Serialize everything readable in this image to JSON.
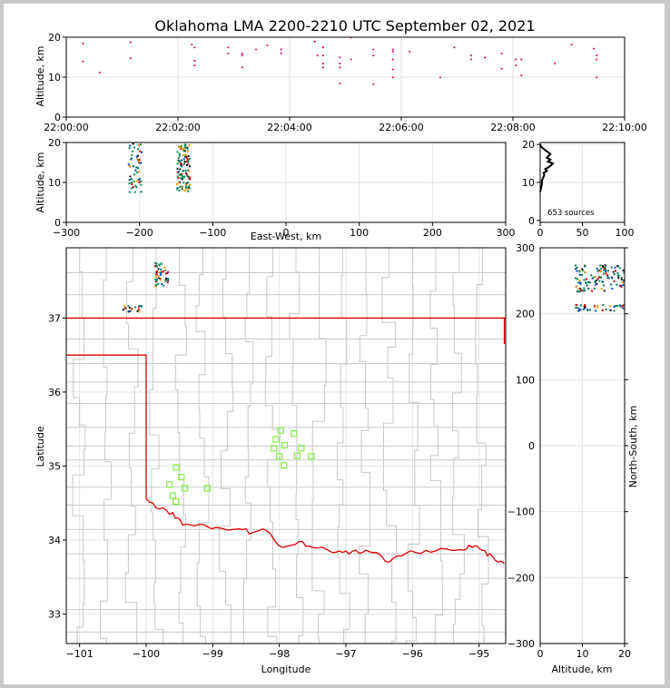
{
  "chart_data": [
    {
      "type": "scatter",
      "panel": "time-altitude",
      "title": "Oklahoma LMA 2200-2210 UTC September 02, 2021",
      "xlabel": "",
      "ylabel": "Altitude, km",
      "x_ticks": [
        "22:00:00",
        "22:02:00",
        "22:04:00",
        "22:06:00",
        "22:08:00",
        "22:10:00"
      ],
      "xlim_minutes": [
        0,
        10
      ],
      "y_ticks": [
        0,
        10,
        20
      ],
      "ylim": [
        0,
        20
      ],
      "grid": true,
      "marker_color": "#cc0066",
      "points_minutes_km": [
        [
          0.3,
          18.5
        ],
        [
          0.3,
          14
        ],
        [
          0.6,
          11.2
        ],
        [
          1.15,
          18.8
        ],
        [
          1.15,
          14.8
        ],
        [
          2.25,
          18.2
        ],
        [
          2.3,
          17.5
        ],
        [
          2.3,
          14.2
        ],
        [
          2.3,
          13
        ],
        [
          2.9,
          17.5
        ],
        [
          2.9,
          16
        ],
        [
          3.15,
          16
        ],
        [
          3.15,
          15.5
        ],
        [
          3.15,
          12.5
        ],
        [
          3.4,
          17
        ],
        [
          3.6,
          18
        ],
        [
          3.85,
          17
        ],
        [
          3.85,
          16
        ],
        [
          4.45,
          19
        ],
        [
          4.5,
          15.5
        ],
        [
          4.6,
          17.5
        ],
        [
          4.6,
          15.5
        ],
        [
          4.6,
          13.5
        ],
        [
          4.6,
          12.5
        ],
        [
          4.9,
          15
        ],
        [
          4.9,
          13.5
        ],
        [
          4.9,
          12.5
        ],
        [
          4.9,
          8.5
        ],
        [
          5.1,
          14.5
        ],
        [
          5.1,
          20
        ],
        [
          5.5,
          17
        ],
        [
          5.5,
          15.5
        ],
        [
          5.5,
          8.3
        ],
        [
          5.85,
          17
        ],
        [
          5.85,
          16.5
        ],
        [
          5.85,
          14.5
        ],
        [
          5.85,
          12
        ],
        [
          5.85,
          10
        ],
        [
          6.15,
          16.5
        ],
        [
          6.7,
          10
        ],
        [
          6.95,
          17.5
        ],
        [
          7.25,
          15.5
        ],
        [
          7.25,
          14.5
        ],
        [
          7.5,
          15
        ],
        [
          7.8,
          16
        ],
        [
          7.8,
          12.2
        ],
        [
          8.05,
          14.5
        ],
        [
          8.05,
          13
        ],
        [
          8.15,
          14.5
        ],
        [
          8.15,
          10.5
        ],
        [
          8.75,
          13.5
        ],
        [
          9.05,
          18.2
        ],
        [
          9.45,
          17.2
        ],
        [
          9.5,
          15.5
        ],
        [
          9.5,
          14.5
        ],
        [
          9.5,
          10
        ]
      ]
    },
    {
      "type": "scatter",
      "panel": "east-west-altitude",
      "xlabel": "East-West, km",
      "ylabel": "Altitude, km",
      "x_ticks": [
        -300,
        -200,
        -100,
        0,
        100,
        200,
        300
      ],
      "xlim": [
        -300,
        300
      ],
      "y_ticks": [
        0,
        10,
        20
      ],
      "ylim": [
        0,
        20
      ],
      "grid": true,
      "clusters": [
        {
          "x_range": [
            -216,
            -198
          ],
          "y_range": [
            7.5,
            20
          ],
          "count": 55
        },
        {
          "x_range": [
            -150,
            -132
          ],
          "y_range": [
            8,
            20
          ],
          "count": 110
        }
      ]
    },
    {
      "type": "line",
      "panel": "altitude-histogram",
      "annotation": "653 sources",
      "x_ticks": [
        0,
        50,
        100
      ],
      "xlim": [
        0,
        100
      ],
      "y_ticks": [
        0,
        10,
        20
      ],
      "ylim": [
        0,
        20
      ],
      "points_count_km": [
        [
          0,
          7.5
        ],
        [
          1,
          8.5
        ],
        [
          2,
          9.5
        ],
        [
          2,
          10.5
        ],
        [
          3,
          11
        ],
        [
          5,
          12
        ],
        [
          4,
          12.5
        ],
        [
          8,
          13
        ],
        [
          6,
          13.5
        ],
        [
          10,
          14
        ],
        [
          13,
          14.5
        ],
        [
          15,
          15
        ],
        [
          9,
          15.5
        ],
        [
          12,
          16
        ],
        [
          8,
          16.5
        ],
        [
          10,
          17
        ],
        [
          12,
          17.5
        ],
        [
          9,
          18
        ],
        [
          6,
          18.5
        ],
        [
          3,
          19
        ],
        [
          1,
          19.5
        ],
        [
          0,
          20
        ]
      ]
    },
    {
      "type": "map",
      "panel": "plan-view",
      "xlabel": "Longitude",
      "ylabel": "Latitude",
      "x_ticks": [
        -101,
        -100,
        -99,
        -98,
        -97,
        -96,
        -95
      ],
      "xlim": [
        -101.2,
        -94.6
      ],
      "y_ticks": [
        33,
        34,
        35,
        36,
        37
      ],
      "ylim": [
        32.6,
        37.95
      ],
      "grid": true,
      "state_border_color": "#dd0000",
      "county_line_color": "#c8c8c8",
      "station_color": "#80ee44",
      "stations": [
        [
          -99.55,
          34.98
        ],
        [
          -99.47,
          34.85
        ],
        [
          -99.65,
          34.75
        ],
        [
          -99.42,
          34.7
        ],
        [
          -99.6,
          34.6
        ],
        [
          -99.55,
          34.52
        ],
        [
          -99.08,
          34.7
        ],
        [
          -97.98,
          35.48
        ],
        [
          -98.05,
          35.36
        ],
        [
          -98.08,
          35.24
        ],
        [
          -97.92,
          35.28
        ],
        [
          -97.78,
          35.44
        ],
        [
          -98.0,
          35.13
        ],
        [
          -97.93,
          35.01
        ],
        [
          -97.73,
          35.14
        ],
        [
          -97.67,
          35.24
        ],
        [
          -97.52,
          35.13
        ]
      ],
      "source_clusters": [
        {
          "lon": -100.22,
          "lat": 37.13,
          "count": 18
        },
        {
          "lon": -99.78,
          "lat": 37.6,
          "count": 50
        }
      ]
    },
    {
      "type": "scatter",
      "panel": "altitude-north-south",
      "xlabel": "Altitude, km",
      "ylabel": "North-South, km",
      "x_ticks": [
        0,
        10,
        20
      ],
      "xlim": [
        0,
        20
      ],
      "y_ticks": [
        -300,
        -200,
        -100,
        0,
        100,
        200,
        300
      ],
      "ylim": [
        -300,
        300
      ],
      "grid": true,
      "clusters": [
        {
          "x_range": [
            8,
            20
          ],
          "y_range": [
            205,
            215
          ],
          "count": 40
        },
        {
          "x_range": [
            8,
            20
          ],
          "y_range": [
            235,
            275
          ],
          "count": 120
        }
      ]
    }
  ]
}
